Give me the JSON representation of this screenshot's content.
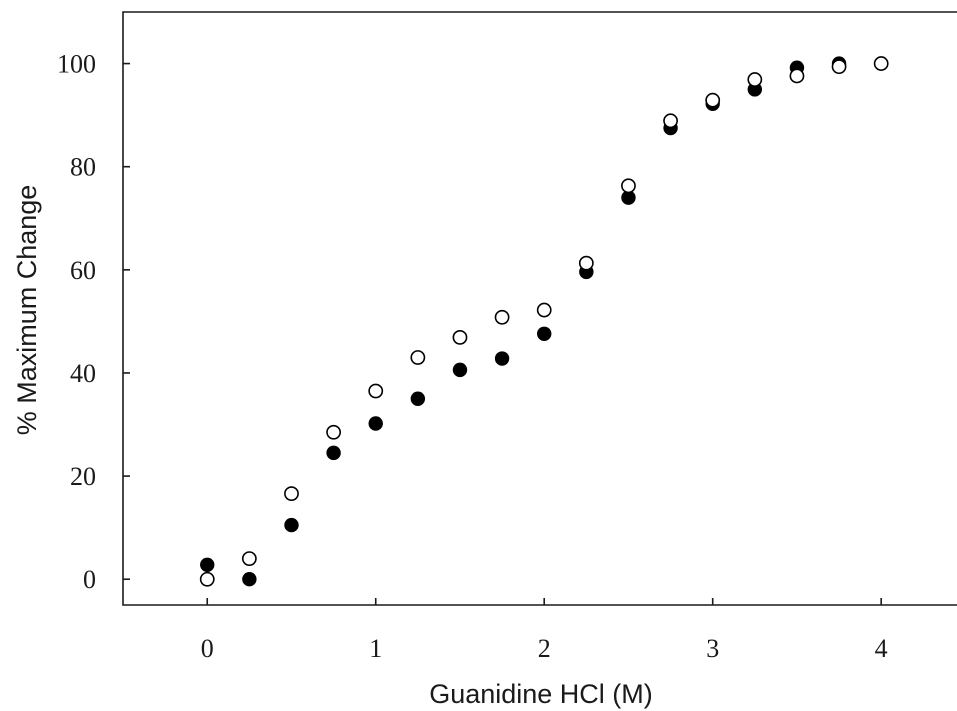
{
  "chart_data": {
    "type": "scatter",
    "title": "",
    "xlabel": "Guanidine HCl (M)",
    "ylabel": "% Maximum Change",
    "xlim": [
      -0.5,
      4.45
    ],
    "ylim": [
      -5,
      110
    ],
    "xticks": [
      0,
      1,
      2,
      3,
      4
    ],
    "yticks": [
      0,
      20,
      40,
      60,
      80,
      100
    ],
    "grid": false,
    "legend": "none",
    "series": [
      {
        "marker": "filled-circle",
        "color": "#000000",
        "points": [
          [
            0,
            2.8
          ],
          [
            0.25,
            0
          ],
          [
            0.5,
            10.5
          ],
          [
            0.75,
            24.5
          ],
          [
            1,
            30.2
          ],
          [
            1.25,
            35.0
          ],
          [
            1.5,
            40.6
          ],
          [
            1.75,
            42.8
          ],
          [
            2,
            47.6
          ],
          [
            2.25,
            59.6
          ],
          [
            2.5,
            74.0
          ],
          [
            2.75,
            87.5
          ],
          [
            3,
            92.2
          ],
          [
            3.25,
            95.0
          ],
          [
            3.5,
            99.2
          ],
          [
            3.75,
            100.0
          ]
        ]
      },
      {
        "marker": "open-circle",
        "color": "#000000",
        "points": [
          [
            0,
            0
          ],
          [
            0.25,
            4.0
          ],
          [
            0.5,
            16.6
          ],
          [
            0.75,
            28.5
          ],
          [
            1,
            36.5
          ],
          [
            1.25,
            43.0
          ],
          [
            1.5,
            46.9
          ],
          [
            1.75,
            50.8
          ],
          [
            2,
            52.2
          ],
          [
            2.25,
            61.3
          ],
          [
            2.5,
            76.3
          ],
          [
            2.75,
            88.9
          ],
          [
            3,
            92.9
          ],
          [
            3.25,
            96.9
          ],
          [
            3.5,
            97.6
          ],
          [
            3.75,
            99.4
          ],
          [
            4,
            100.0
          ]
        ]
      }
    ]
  }
}
